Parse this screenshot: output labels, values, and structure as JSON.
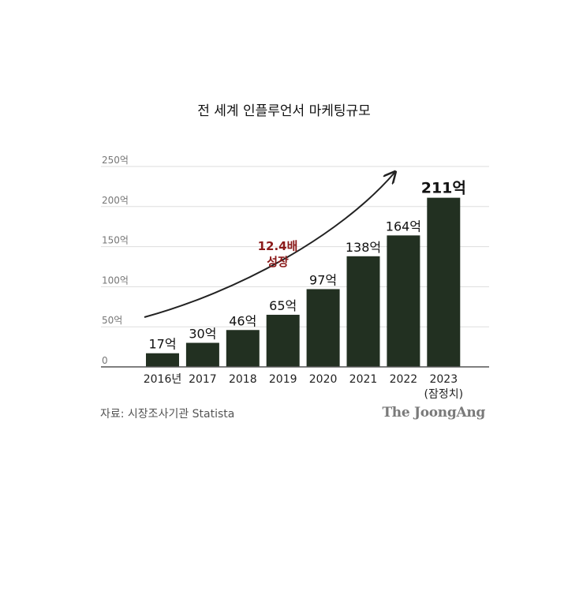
{
  "chart_data": {
    "type": "bar",
    "title": "전 세계 인플루언서 마케팅규모",
    "categories": [
      "2016년",
      "2017",
      "2018",
      "2019",
      "2020",
      "2021",
      "2022",
      "2023"
    ],
    "category_sublabels": [
      "",
      "",
      "",
      "",
      "",
      "",
      "",
      "(잠정치)"
    ],
    "values": [
      17,
      30,
      46,
      65,
      97,
      138,
      164,
      211
    ],
    "value_labels": [
      "17억",
      "30억",
      "46억",
      "65억",
      "97억",
      "138억",
      "164억",
      "211억"
    ],
    "yticks": [
      0,
      50,
      100,
      150,
      200,
      250
    ],
    "ytick_labels": [
      "0",
      "50억",
      "100억",
      "150억",
      "200억",
      "250억"
    ],
    "ylim": [
      0,
      250
    ],
    "grid": true,
    "annotation": {
      "line1": "12.4배",
      "line2": "성장"
    },
    "colors": {
      "bar": "#223021",
      "annotation": "#8b1a1a",
      "grid": "#dddddd",
      "axis": "#555555"
    }
  },
  "source": "자료: 시장조사기관 Statista",
  "logo": "The JoongAng"
}
